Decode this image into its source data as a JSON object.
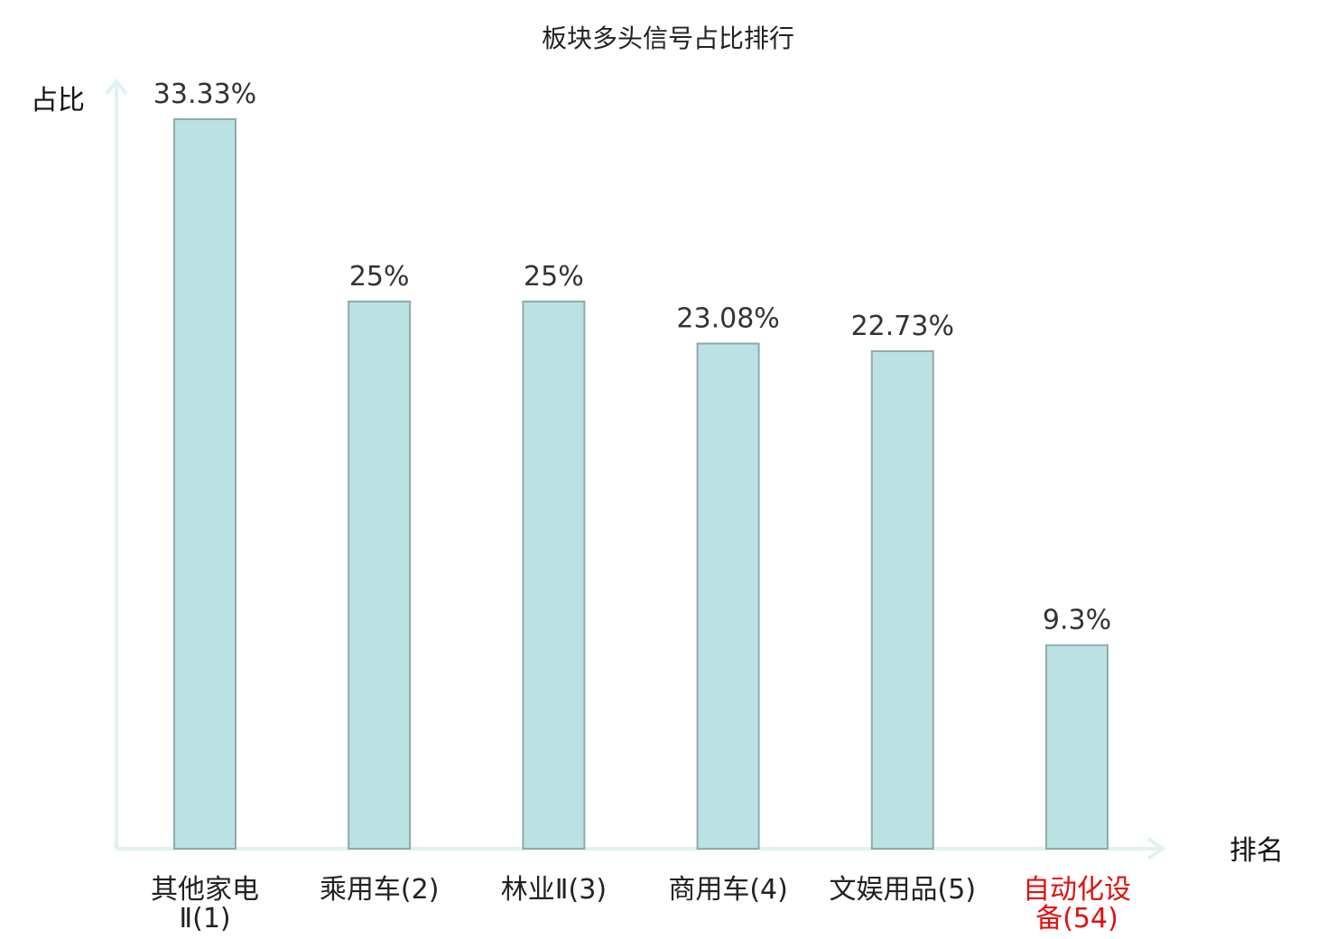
{
  "chart_data": {
    "type": "bar",
    "title": "板块多头信号占比排行",
    "ylabel": "占比",
    "xlabel": "排名",
    "ylim": [
      0,
      35
    ],
    "grid": false,
    "categories": [
      {
        "lines": [
          "其他家电",
          "Ⅱ(1)"
        ],
        "highlight": false
      },
      {
        "lines": [
          "乘用车(2)"
        ],
        "highlight": false
      },
      {
        "lines": [
          "林业Ⅱ(3)"
        ],
        "highlight": false
      },
      {
        "lines": [
          "商用车(4)"
        ],
        "highlight": false
      },
      {
        "lines": [
          "文娱用品(5)"
        ],
        "highlight": false
      },
      {
        "lines": [
          "自动化设",
          "备(54)"
        ],
        "highlight": true
      }
    ],
    "values": [
      33.33,
      25,
      25,
      23.08,
      22.73,
      9.3
    ],
    "value_labels": [
      "33.33%",
      "25%",
      "25%",
      "23.08%",
      "22.73%",
      "9.3%"
    ],
    "colors": {
      "bar_fill": "#bce1e3",
      "bar_stroke": "#8faaab",
      "axis": "#dff2ef",
      "label_normal": "#222222",
      "label_highlight": "#e01010"
    }
  }
}
